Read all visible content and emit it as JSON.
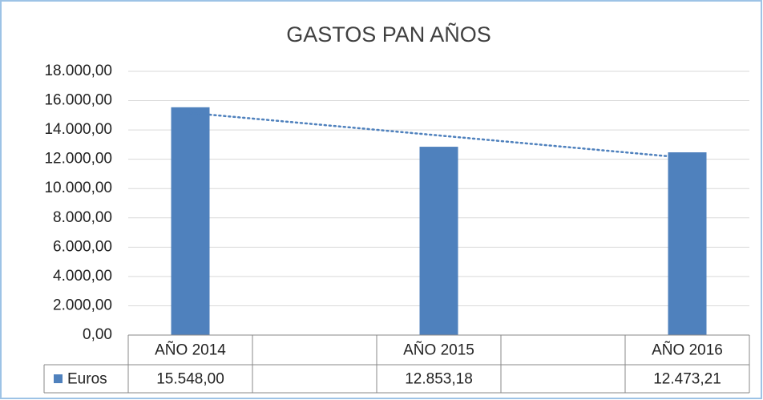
{
  "chart_data": {
    "type": "bar",
    "title": "GASTOS PAN AÑOS",
    "categories": [
      "AÑO 2014",
      null,
      "AÑO 2015",
      null,
      "AÑO 2016"
    ],
    "series": [
      {
        "name": "Euros",
        "color": "#4f81bd",
        "values": [
          15548,
          null,
          12853.18,
          null,
          12473.21
        ],
        "value_labels": [
          "15.548,00",
          null,
          "12.853,18",
          null,
          "12.473,21"
        ]
      }
    ],
    "ylim": [
      0,
      18000
    ],
    "yticks": [
      {
        "value": 0,
        "label": "0,00"
      },
      {
        "value": 2000,
        "label": "2.000,00"
      },
      {
        "value": 4000,
        "label": "4.000,00"
      },
      {
        "value": 6000,
        "label": "6.000,00"
      },
      {
        "value": 8000,
        "label": "8.000,00"
      },
      {
        "value": 10000,
        "label": "10.000,00"
      },
      {
        "value": 12000,
        "label": "12.000,00"
      },
      {
        "value": 14000,
        "label": "14.000,00"
      },
      {
        "value": 16000,
        "label": "16.000,00"
      },
      {
        "value": 18000,
        "label": "18.000,00"
      }
    ],
    "grid": true,
    "trendline": "linear",
    "data_table": true
  }
}
